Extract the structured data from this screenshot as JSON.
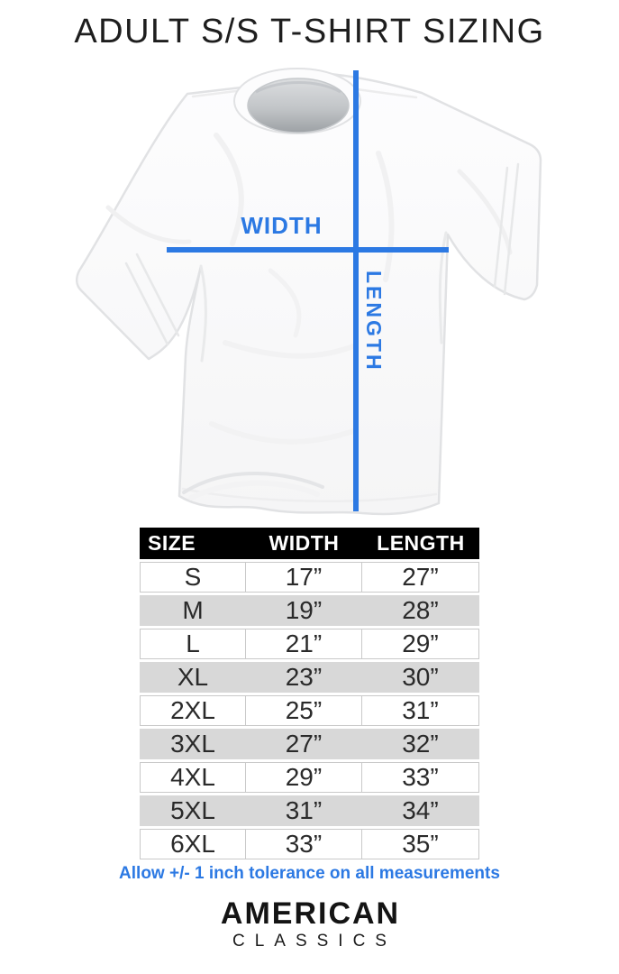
{
  "chart_data": {
    "type": "table",
    "title": "ADULT S/S T-SHIRT SIZING",
    "columns": [
      "SIZE",
      "WIDTH",
      "LENGTH"
    ],
    "rows": [
      [
        "S",
        "17”",
        "27”"
      ],
      [
        "M",
        "19”",
        "28”"
      ],
      [
        "L",
        "21”",
        "29”"
      ],
      [
        "XL",
        "23”",
        "30”"
      ],
      [
        "2XL",
        "25”",
        "31”"
      ],
      [
        "3XL",
        "27”",
        "32”"
      ],
      [
        "4XL",
        "29”",
        "33”"
      ],
      [
        "5XL",
        "31”",
        "34”"
      ],
      [
        "6XL",
        "33”",
        "35”"
      ]
    ],
    "note": "Allow +/- 1 inch tolerance on all measurements",
    "layout": {
      "header_bg": "#000000",
      "row_alt_color": "#d8d8d8",
      "grid": "alternating-rows"
    }
  },
  "diagram": {
    "width_label": "WIDTH",
    "length_label": "LENGTH",
    "line_color": "#2c79e3"
  },
  "brand": {
    "name": "AMERICAN",
    "subname": "CLASSICS"
  },
  "colors": {
    "accent_blue": "#2c79e3",
    "text_dark": "#1e1e1e"
  }
}
